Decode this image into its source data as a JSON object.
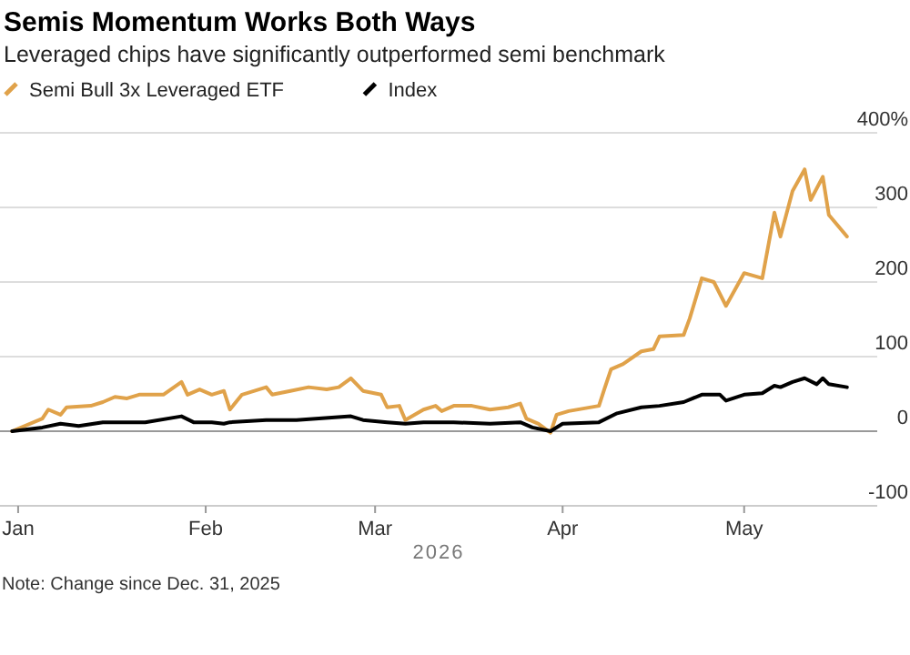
{
  "chart_data": {
    "type": "line",
    "title": "Semis Momentum Works Both Ways",
    "subtitle": "Leveraged chips have significantly outperformed semi benchmark",
    "xlabel": "2026",
    "annotations": [
      "Note: Change since Dec. 31, 2025"
    ],
    "xlim": [
      "2025-12-29",
      "2026-05-23"
    ],
    "xticks": [
      {
        "value": "2026-01-01",
        "label": "Jan"
      },
      {
        "value": "2026-02-01",
        "label": "Feb"
      },
      {
        "value": "2026-03-01",
        "label": "Mar"
      },
      {
        "value": "2026-04-01",
        "label": "Apr"
      },
      {
        "value": "2026-05-01",
        "label": "May"
      }
    ],
    "ylim": [
      -100,
      400
    ],
    "yticks": [
      {
        "value": 400,
        "label": "400%"
      },
      300,
      200,
      100,
      0,
      -100
    ],
    "grid": "y",
    "legend": "top left",
    "marker": "none",
    "line_style": "solid",
    "series": [
      {
        "name": "Semi Bull 3x Leveraged ETF",
        "color": "#e0a24a",
        "x": [
          "2025-12-31",
          "2026-01-05",
          "2026-01-06",
          "2026-01-08",
          "2026-01-09",
          "2026-01-13",
          "2026-01-15",
          "2026-01-17",
          "2026-01-19",
          "2026-01-21",
          "2026-01-25",
          "2026-01-28",
          "2026-01-29",
          "2026-01-31",
          "2026-02-02",
          "2026-02-04",
          "2026-02-05",
          "2026-02-07",
          "2026-02-11",
          "2026-02-12",
          "2026-02-15",
          "2026-02-18",
          "2026-02-21",
          "2026-02-23",
          "2026-02-25",
          "2026-02-27",
          "2026-03-02",
          "2026-03-03",
          "2026-03-05",
          "2026-03-06",
          "2026-03-09",
          "2026-03-11",
          "2026-03-12",
          "2026-03-14",
          "2026-03-17",
          "2026-03-20",
          "2026-03-23",
          "2026-03-25",
          "2026-03-26",
          "2026-03-28",
          "2026-03-30",
          "2026-03-31",
          "2026-04-02",
          "2026-04-07",
          "2026-04-08",
          "2026-04-09",
          "2026-04-11",
          "2026-04-14",
          "2026-04-16",
          "2026-04-17",
          "2026-04-21",
          "2026-04-22",
          "2026-04-24",
          "2026-04-26",
          "2026-04-28",
          "2026-05-01",
          "2026-05-04",
          "2026-05-06",
          "2026-05-07",
          "2026-05-09",
          "2026-05-11",
          "2026-05-12",
          "2026-05-14",
          "2026-05-15",
          "2026-05-18"
        ],
        "values": [
          0,
          17,
          29,
          22,
          32,
          34,
          39,
          46,
          44,
          49,
          49,
          66,
          49,
          56,
          49,
          54,
          29,
          49,
          59,
          49,
          54,
          59,
          56,
          59,
          71,
          54,
          49,
          32,
          34,
          15,
          29,
          34,
          27,
          34,
          34,
          29,
          32,
          37,
          17,
          10,
          -2,
          22,
          27,
          34,
          59,
          83,
          90,
          107,
          110,
          127,
          129,
          151,
          205,
          200,
          168,
          212,
          205,
          293,
          261,
          322,
          351,
          310,
          341,
          290,
          261
        ]
      },
      {
        "name": "Index",
        "color": "#000000",
        "x": [
          "2025-12-31",
          "2026-01-05",
          "2026-01-08",
          "2026-01-11",
          "2026-01-15",
          "2026-01-22",
          "2026-01-28",
          "2026-01-30",
          "2026-02-02",
          "2026-02-04",
          "2026-02-05",
          "2026-02-11",
          "2026-02-16",
          "2026-02-25",
          "2026-02-27",
          "2026-03-03",
          "2026-03-06",
          "2026-03-09",
          "2026-03-14",
          "2026-03-20",
          "2026-03-25",
          "2026-03-27",
          "2026-03-30",
          "2026-04-01",
          "2026-04-07",
          "2026-04-10",
          "2026-04-14",
          "2026-04-17",
          "2026-04-21",
          "2026-04-24",
          "2026-04-27",
          "2026-04-28",
          "2026-05-01",
          "2026-05-04",
          "2026-05-06",
          "2026-05-07",
          "2026-05-09",
          "2026-05-11",
          "2026-05-13",
          "2026-05-14",
          "2026-05-15",
          "2026-05-18"
        ],
        "values": [
          0,
          5,
          10,
          7,
          12,
          12,
          20,
          12,
          12,
          10,
          12,
          15,
          15,
          20,
          15,
          12,
          10,
          12,
          12,
          10,
          12,
          5,
          0,
          10,
          12,
          24,
          32,
          34,
          39,
          49,
          49,
          41,
          49,
          51,
          61,
          59,
          66,
          71,
          63,
          71,
          63,
          59
        ]
      }
    ]
  }
}
